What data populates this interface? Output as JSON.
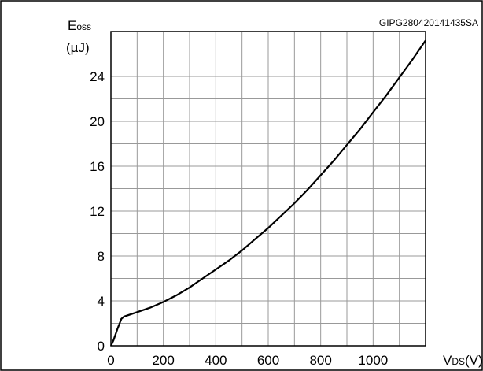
{
  "figure_ref": "GIPG280420141435SA",
  "chart_data": {
    "type": "line",
    "ylabel": {
      "main": "E",
      "sub": "oss",
      "unit": "(µJ)"
    },
    "xlabel": {
      "main": "V",
      "sub": "DS",
      "unit": "(V)"
    },
    "xlim": [
      0,
      1200
    ],
    "ylim": [
      0,
      28
    ],
    "x_ticks": [
      0,
      200,
      400,
      600,
      800,
      1000
    ],
    "y_ticks": [
      0,
      4,
      8,
      12,
      16,
      20,
      24
    ],
    "x_grid_step": 100,
    "y_grid_step": 2,
    "grid": true,
    "series": [
      {
        "values": [
          {
            "x": 0,
            "y": 0.0
          },
          {
            "x": 10,
            "y": 0.5
          },
          {
            "x": 25,
            "y": 1.5
          },
          {
            "x": 40,
            "y": 2.4
          },
          {
            "x": 50,
            "y": 2.6
          },
          {
            "x": 100,
            "y": 3.0
          },
          {
            "x": 150,
            "y": 3.4
          },
          {
            "x": 200,
            "y": 3.9
          },
          {
            "x": 250,
            "y": 4.5
          },
          {
            "x": 300,
            "y": 5.2
          },
          {
            "x": 350,
            "y": 6.0
          },
          {
            "x": 400,
            "y": 6.8
          },
          {
            "x": 450,
            "y": 7.6
          },
          {
            "x": 500,
            "y": 8.5
          },
          {
            "x": 550,
            "y": 9.5
          },
          {
            "x": 600,
            "y": 10.5
          },
          {
            "x": 650,
            "y": 11.6
          },
          {
            "x": 700,
            "y": 12.7
          },
          {
            "x": 750,
            "y": 13.9
          },
          {
            "x": 800,
            "y": 15.2
          },
          {
            "x": 850,
            "y": 16.5
          },
          {
            "x": 900,
            "y": 17.9
          },
          {
            "x": 950,
            "y": 19.3
          },
          {
            "x": 1000,
            "y": 20.8
          },
          {
            "x": 1050,
            "y": 22.3
          },
          {
            "x": 1100,
            "y": 23.9
          },
          {
            "x": 1150,
            "y": 25.5
          },
          {
            "x": 1200,
            "y": 27.2
          }
        ]
      }
    ]
  }
}
